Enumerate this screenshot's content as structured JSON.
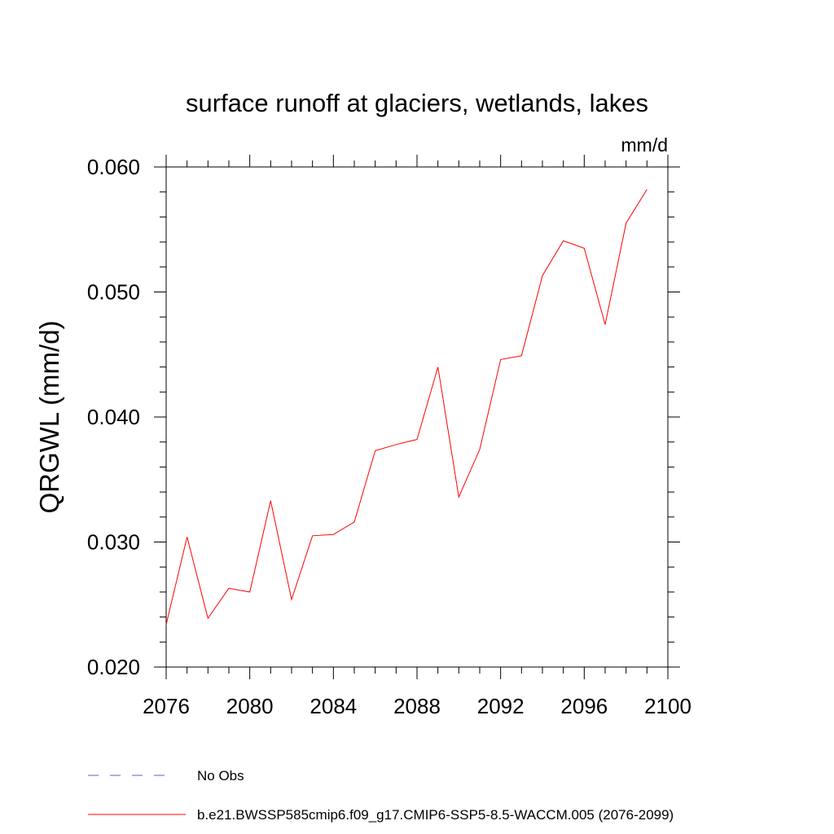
{
  "chart_data": {
    "type": "line",
    "title": "surface runoff at glaciers, wetlands, lakes",
    "units": "mm/d",
    "xlabel": "",
    "ylabel": "QRGWL  (mm/d)",
    "xlim": [
      2076,
      2100
    ],
    "ylim": [
      0.02,
      0.06
    ],
    "x_ticks": [
      "2076",
      "2080",
      "2084",
      "2088",
      "2092",
      "2096",
      "2100"
    ],
    "y_ticks": [
      "0.020",
      "0.030",
      "0.040",
      "0.050",
      "0.060"
    ],
    "grid": false,
    "series": [
      {
        "name": "b.e21.BWSSP585cmip6.f09_g17.CMIP6-SSP5-8.5-WACCM.005 (2076-2099)",
        "color": "#ff0000",
        "style": "solid",
        "x": [
          2076,
          2077,
          2078,
          2079,
          2080,
          2081,
          2082,
          2083,
          2084,
          2085,
          2086,
          2087,
          2088,
          2089,
          2090,
          2091,
          2092,
          2093,
          2094,
          2095,
          2096,
          2097,
          2098,
          2099
        ],
        "values": [
          0.0234,
          0.0304,
          0.0239,
          0.0263,
          0.026,
          0.0333,
          0.0254,
          0.0305,
          0.0306,
          0.0316,
          0.0373,
          0.0378,
          0.0382,
          0.044,
          0.0336,
          0.0374,
          0.0446,
          0.0449,
          0.0513,
          0.0541,
          0.0535,
          0.0474,
          0.0555,
          0.0582
        ]
      }
    ],
    "legend": [
      {
        "label": "No Obs",
        "color": "#6a5acd",
        "style": "dashed"
      },
      {
        "label": "b.e21.BWSSP585cmip6.f09_g17.CMIP6-SSP5-8.5-WACCM.005 (2076-2099)",
        "color": "#ff0000",
        "style": "solid"
      }
    ],
    "legend_position": "bottom-left"
  }
}
